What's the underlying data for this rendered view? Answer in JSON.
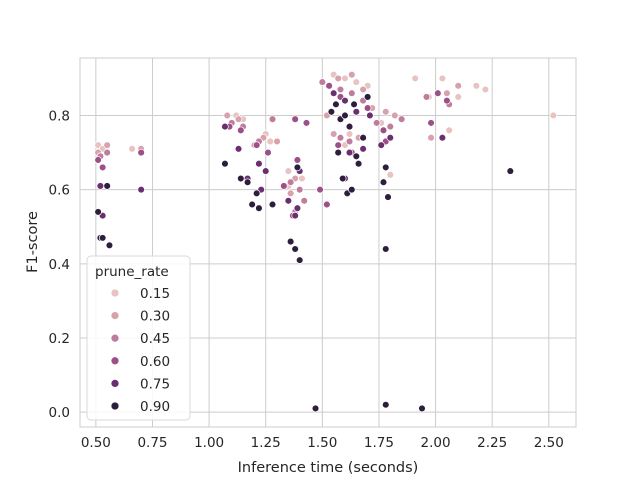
{
  "chart_data": {
    "type": "scatter",
    "xlabel": "Inference time (seconds)",
    "ylabel": "F1-score",
    "xlim": [
      0.43,
      2.62
    ],
    "ylim": [
      -0.04,
      0.955
    ],
    "xticks": [
      "0.50",
      "0.75",
      "1.00",
      "1.25",
      "1.50",
      "1.75",
      "2.00",
      "2.25",
      "2.50"
    ],
    "yticks": [
      "0.0",
      "0.2",
      "0.4",
      "0.6",
      "0.8"
    ],
    "grid": true,
    "legend": {
      "title": "prune_rate",
      "placement": "lower-left",
      "entries": [
        "0.15",
        "0.30",
        "0.45",
        "0.60",
        "0.75",
        "0.90"
      ]
    },
    "series": [
      {
        "name": "0.15",
        "color": "#e8c3c2",
        "points": [
          [
            0.51,
            0.72
          ],
          [
            0.53,
            0.71
          ],
          [
            0.66,
            0.71
          ],
          [
            0.7,
            0.7
          ],
          [
            1.12,
            0.8
          ],
          [
            1.15,
            0.79
          ],
          [
            1.25,
            0.75
          ],
          [
            1.27,
            0.73
          ],
          [
            1.35,
            0.65
          ],
          [
            1.41,
            0.63
          ],
          [
            1.55,
            0.91
          ],
          [
            1.6,
            0.9
          ],
          [
            1.65,
            0.89
          ],
          [
            1.7,
            0.88
          ],
          [
            1.8,
            0.64
          ],
          [
            1.91,
            0.9
          ],
          [
            1.97,
            0.85
          ],
          [
            2.03,
            0.9
          ],
          [
            2.06,
            0.76
          ],
          [
            2.1,
            0.85
          ],
          [
            2.18,
            0.88
          ],
          [
            2.22,
            0.87
          ],
          [
            2.52,
            0.8
          ],
          [
            1.62,
            0.75
          ],
          [
            1.76,
            0.78
          ],
          [
            1.35,
            0.61
          ],
          [
            1.6,
            0.72
          ]
        ]
      },
      {
        "name": "0.30",
        "color": "#d7a2ac",
        "points": [
          [
            0.51,
            0.7
          ],
          [
            0.55,
            0.72
          ],
          [
            0.7,
            0.71
          ],
          [
            1.08,
            0.8
          ],
          [
            1.13,
            0.79
          ],
          [
            1.2,
            0.72
          ],
          [
            1.24,
            0.74
          ],
          [
            1.3,
            0.73
          ],
          [
            1.38,
            0.63
          ],
          [
            1.52,
            0.8
          ],
          [
            1.57,
            0.9
          ],
          [
            1.63,
            0.91
          ],
          [
            1.68,
            0.87
          ],
          [
            1.72,
            0.82
          ],
          [
            1.78,
            0.81
          ],
          [
            1.82,
            0.8
          ],
          [
            1.98,
            0.74
          ],
          [
            2.05,
            0.86
          ],
          [
            2.1,
            0.88
          ],
          [
            1.66,
            0.74
          ],
          [
            1.55,
            0.75
          ],
          [
            1.36,
            0.59
          ]
        ]
      },
      {
        "name": "0.45",
        "color": "#bf7d9e",
        "points": [
          [
            0.52,
            0.69
          ],
          [
            0.55,
            0.7
          ],
          [
            1.1,
            0.78
          ],
          [
            1.15,
            0.77
          ],
          [
            1.22,
            0.73
          ],
          [
            1.28,
            0.79
          ],
          [
            1.36,
            0.62
          ],
          [
            1.4,
            0.6
          ],
          [
            1.5,
            0.89
          ],
          [
            1.58,
            0.87
          ],
          [
            1.63,
            0.86
          ],
          [
            1.68,
            0.84
          ],
          [
            1.74,
            0.78
          ],
          [
            1.8,
            0.77
          ],
          [
            1.85,
            0.79
          ],
          [
            1.96,
            0.85
          ],
          [
            2.06,
            0.83
          ],
          [
            1.58,
            0.74
          ],
          [
            1.62,
            0.73
          ],
          [
            1.38,
            0.54
          ],
          [
            1.42,
            0.57
          ]
        ]
      },
      {
        "name": "0.60",
        "color": "#9c5088",
        "points": [
          [
            0.51,
            0.68
          ],
          [
            0.53,
            0.66
          ],
          [
            0.7,
            0.7
          ],
          [
            1.09,
            0.77
          ],
          [
            1.14,
            0.76
          ],
          [
            1.21,
            0.72
          ],
          [
            1.26,
            0.7
          ],
          [
            1.33,
            0.61
          ],
          [
            1.37,
            0.53
          ],
          [
            1.38,
            0.79
          ],
          [
            1.43,
            0.78
          ],
          [
            1.49,
            0.6
          ],
          [
            1.53,
            0.88
          ],
          [
            1.58,
            0.85
          ],
          [
            1.64,
            0.83
          ],
          [
            1.7,
            0.82
          ],
          [
            1.77,
            0.76
          ],
          [
            1.78,
            0.73
          ],
          [
            1.98,
            0.78
          ],
          [
            2.01,
            0.86
          ],
          [
            2.05,
            0.84
          ],
          [
            1.57,
            0.72
          ],
          [
            1.63,
            0.7
          ],
          [
            1.52,
            0.56
          ],
          [
            1.39,
            0.68
          ]
        ]
      },
      {
        "name": "0.75",
        "color": "#6a2f70",
        "points": [
          [
            0.52,
            0.61
          ],
          [
            0.53,
            0.53
          ],
          [
            0.7,
            0.6
          ],
          [
            1.07,
            0.77
          ],
          [
            1.13,
            0.71
          ],
          [
            1.17,
            0.63
          ],
          [
            1.22,
            0.67
          ],
          [
            1.25,
            0.65
          ],
          [
            1.35,
            0.57
          ],
          [
            1.39,
            0.55
          ],
          [
            1.4,
            0.65
          ],
          [
            1.55,
            0.86
          ],
          [
            1.6,
            0.84
          ],
          [
            1.65,
            0.81
          ],
          [
            1.71,
            0.8
          ],
          [
            1.76,
            0.72
          ],
          [
            1.8,
            0.74
          ],
          [
            2.03,
            0.74
          ],
          [
            1.62,
            0.7
          ],
          [
            1.68,
            0.71
          ],
          [
            1.6,
            0.63
          ],
          [
            1.38,
            0.53
          ],
          [
            1.23,
            0.6
          ]
        ]
      },
      {
        "name": "0.90",
        "color": "#2d1e3e",
        "points": [
          [
            0.51,
            0.54
          ],
          [
            0.52,
            0.47
          ],
          [
            0.53,
            0.47
          ],
          [
            0.55,
            0.61
          ],
          [
            0.56,
            0.45
          ],
          [
            1.07,
            0.67
          ],
          [
            1.14,
            0.63
          ],
          [
            1.17,
            0.62
          ],
          [
            1.19,
            0.56
          ],
          [
            1.21,
            0.59
          ],
          [
            1.22,
            0.55
          ],
          [
            1.28,
            0.56
          ],
          [
            1.36,
            0.46
          ],
          [
            1.38,
            0.44
          ],
          [
            1.4,
            0.41
          ],
          [
            1.39,
            0.66
          ],
          [
            1.47,
            0.01
          ],
          [
            1.54,
            0.81
          ],
          [
            1.56,
            0.83
          ],
          [
            1.58,
            0.79
          ],
          [
            1.6,
            0.8
          ],
          [
            1.62,
            0.77
          ],
          [
            1.64,
            0.83
          ],
          [
            1.7,
            0.85
          ],
          [
            1.59,
            0.63
          ],
          [
            1.61,
            0.59
          ],
          [
            1.63,
            0.6
          ],
          [
            1.66,
            0.67
          ],
          [
            1.68,
            0.74
          ],
          [
            1.77,
            0.62
          ],
          [
            1.78,
            0.66
          ],
          [
            1.79,
            0.58
          ],
          [
            1.78,
            0.44
          ],
          [
            1.78,
            0.02
          ],
          [
            1.94,
            0.01
          ],
          [
            2.33,
            0.65
          ],
          [
            1.57,
            0.7
          ],
          [
            1.65,
            0.69
          ]
        ]
      }
    ]
  }
}
